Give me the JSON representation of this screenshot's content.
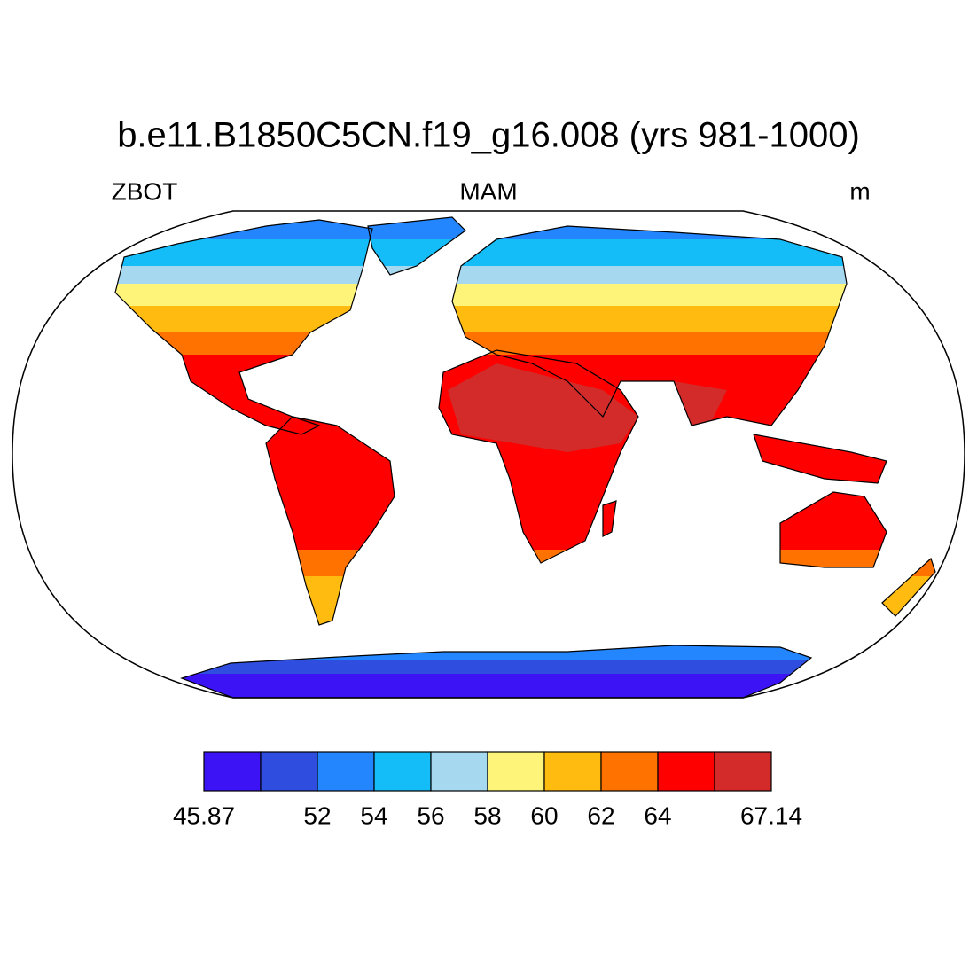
{
  "title": "b.e11.B1850C5CN.f19_g16.008 (yrs 981-1000)",
  "left_string": "ZBOT",
  "center_string": "MAM",
  "right_string": "m",
  "colorbar": {
    "colors": [
      "#3b13f5",
      "#2f4ee0",
      "#2486ff",
      "#14bdf8",
      "#a6d8f0",
      "#fff47a",
      "#ffbb10",
      "#ff7200",
      "#ff0000",
      "#d32a2a"
    ],
    "labels": [
      45.87,
      null,
      52,
      54,
      56,
      58,
      60,
      62,
      64,
      null,
      67.14
    ]
  }
}
